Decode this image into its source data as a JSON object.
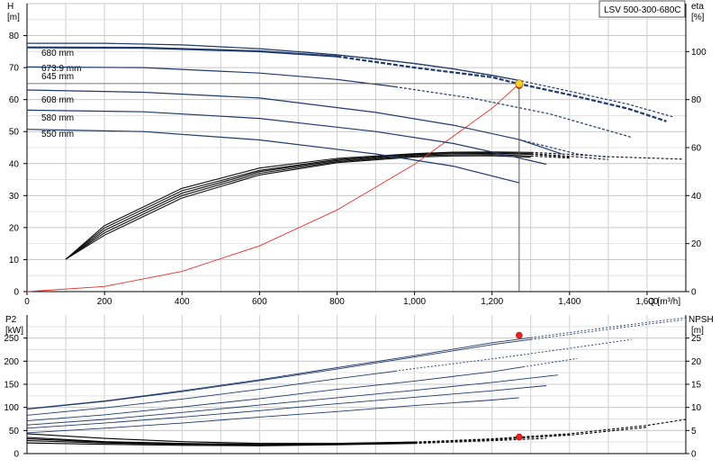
{
  "model": "LSV 500-300-680C",
  "chart_data": [
    {
      "type": "line",
      "name": "pump-head-efficiency",
      "x_axis": {
        "label": "Q [m³/h]",
        "range": [
          0,
          1700
        ],
        "ticks": [
          0,
          200,
          400,
          600,
          800,
          1000,
          1200,
          1400,
          1600
        ],
        "tick_labels": [
          "0",
          "200",
          "400",
          "600",
          "800",
          "1,000",
          "1,200",
          "1,400",
          "1,600"
        ]
      },
      "y_left": {
        "label_line1": "H",
        "label_line2": "[m]",
        "range": [
          0,
          90
        ],
        "ticks": [
          0,
          10,
          20,
          30,
          40,
          50,
          60,
          70,
          80
        ]
      },
      "y_right": {
        "label_line1": "eta",
        "label_line2": "[%]",
        "range": [
          0,
          120
        ],
        "ticks": [
          0,
          20,
          40,
          60,
          80,
          100
        ]
      },
      "grid": true,
      "head_curves": [
        {
          "name": "680 mm",
          "solid": [
            [
              0,
              77.6
            ],
            [
              200,
              77.6
            ],
            [
              400,
              77.1
            ],
            [
              600,
              75.9
            ],
            [
              800,
              74
            ],
            [
              1000,
              71.3
            ],
            [
              1100,
              69.6
            ],
            [
              1200,
              67.6
            ],
            [
              1270,
              66
            ]
          ],
          "dashed": [
            [
              700,
              75
            ],
            [
              900,
              72.8
            ],
            [
              1100,
              69.6
            ],
            [
              1270,
              66
            ],
            [
              1400,
              62.6
            ],
            [
              1550,
              58.6
            ],
            [
              1670,
              54.5
            ]
          ]
        },
        {
          "name": "673.9 mm",
          "solid": [
            [
              0,
              76.3
            ],
            [
              300,
              76.2
            ],
            [
              600,
              75.1
            ],
            [
              800,
              73.5
            ]
          ],
          "dashed": [
            [
              800,
              73.5
            ],
            [
              1000,
              70
            ],
            [
              1200,
              67
            ],
            [
              1270,
              64.9
            ],
            [
              1400,
              61.5
            ],
            [
              1550,
              57.2
            ],
            [
              1650,
              53.2
            ]
          ],
          "emphasis": true
        },
        {
          "name": "645 mm",
          "solid": [
            [
              0,
              70.2
            ],
            [
              300,
              70
            ],
            [
              600,
              68.3
            ],
            [
              800,
              66.3
            ],
            [
              950,
              64
            ]
          ],
          "dashed": [
            [
              950,
              64
            ],
            [
              1150,
              60.4
            ],
            [
              1350,
              55.5
            ],
            [
              1560,
              48.2
            ]
          ]
        },
        {
          "name": "608 mm",
          "solid": [
            [
              0,
              63
            ],
            [
              300,
              62.3
            ],
            [
              600,
              60.5
            ],
            [
              900,
              56
            ],
            [
              1100,
              52
            ],
            [
              1270,
              47.5
            ],
            [
              1380,
              43
            ]
          ],
          "dashed": [
            [
              1270,
              47.5
            ],
            [
              1420,
              43
            ],
            [
              1500,
              42
            ]
          ]
        },
        {
          "name": "580 mm",
          "solid": [
            [
              0,
              56.7
            ],
            [
              300,
              56.2
            ],
            [
              600,
              54.1
            ],
            [
              900,
              50
            ],
            [
              1100,
              46.3
            ],
            [
              1250,
              42.3
            ],
            [
              1340,
              39.8
            ]
          ],
          "dashed": []
        },
        {
          "name": "550 mm",
          "solid": [
            [
              0,
              50.7
            ],
            [
              300,
              50
            ],
            [
              600,
              47.4
            ],
            [
              900,
              43
            ],
            [
              1100,
              39.2
            ],
            [
              1270,
              34
            ]
          ],
          "dashed": []
        }
      ],
      "efficiency_curves": {
        "solid_end": 1300,
        "curves": [
          [
            [
              100,
              13.5
            ],
            [
              200,
              27.5
            ],
            [
              400,
              43
            ],
            [
              600,
              51.5
            ],
            [
              800,
              55.5
            ],
            [
              1000,
              57.5
            ],
            [
              1100,
              58.1
            ],
            [
              1200,
              58.2
            ],
            [
              1300,
              58
            ],
            [
              1400,
              57.2
            ],
            [
              1500,
              56.2
            ],
            [
              1690,
              55.2
            ]
          ],
          [
            [
              100,
              13.5
            ],
            [
              200,
              26.5
            ],
            [
              400,
              42
            ],
            [
              600,
              50.5
            ],
            [
              800,
              55
            ],
            [
              1000,
              57.2
            ],
            [
              1100,
              57.9
            ],
            [
              1200,
              57.9
            ],
            [
              1300,
              57.5
            ],
            [
              1400,
              56.4
            ],
            [
              1500,
              55
            ]
          ],
          [
            [
              100,
              13.5
            ],
            [
              200,
              25.5
            ],
            [
              400,
              41
            ],
            [
              600,
              50
            ],
            [
              800,
              54.6
            ],
            [
              1000,
              56.9
            ],
            [
              1100,
              57.5
            ],
            [
              1200,
              57.6
            ],
            [
              1300,
              57.2
            ],
            [
              1400,
              56
            ]
          ],
          [
            [
              100,
              13.5
            ],
            [
              200,
              24.5
            ],
            [
              400,
              40
            ],
            [
              600,
              49.3
            ],
            [
              800,
              54.1
            ],
            [
              1000,
              56.5
            ],
            [
              1100,
              57
            ],
            [
              1200,
              57.1
            ],
            [
              1300,
              56.5
            ],
            [
              1400,
              55.6
            ]
          ],
          [
            [
              100,
              13.5
            ],
            [
              200,
              23.5
            ],
            [
              400,
              39
            ],
            [
              600,
              48.6
            ],
            [
              800,
              53.7
            ],
            [
              1000,
              56.1
            ],
            [
              1100,
              56.5
            ],
            [
              1200,
              56.6
            ],
            [
              1300,
              56
            ]
          ]
        ]
      },
      "system_curve": [
        [
          0,
          0
        ],
        [
          200,
          1.6
        ],
        [
          400,
          6.3
        ],
        [
          600,
          14.3
        ],
        [
          800,
          25.5
        ],
        [
          1000,
          39.8
        ],
        [
          1200,
          57.3
        ],
        [
          1270,
          64.9
        ]
      ],
      "operating_point": {
        "q": 1270,
        "h": 65,
        "eta": 86
      }
    },
    {
      "type": "line",
      "name": "power-npsh",
      "x_axis": {
        "range": [
          0,
          1700
        ]
      },
      "y_left": {
        "label_line1": "P2",
        "label_line2": "[kW]",
        "range": [
          0,
          300
        ],
        "ticks": [
          0,
          50,
          100,
          150,
          200,
          250
        ]
      },
      "y_right": {
        "label_line1": "NPSH",
        "label_line2": "[m]",
        "range": [
          0,
          30
        ],
        "ticks": [
          0,
          5,
          10,
          15,
          20,
          25
        ]
      },
      "power_curves": [
        {
          "solid_end": 1300,
          "points": [
            [
              0,
              97
            ],
            [
              200,
              114
            ],
            [
              400,
              136
            ],
            [
              600,
              160
            ],
            [
              800,
              186
            ],
            [
              1000,
              212
            ],
            [
              1200,
              240
            ],
            [
              1400,
              262
            ],
            [
              1600,
              284
            ],
            [
              1700,
              294
            ]
          ]
        },
        {
          "solid_end": 1300,
          "points": [
            [
              0,
              96
            ],
            [
              200,
              113
            ],
            [
              400,
              134
            ],
            [
              600,
              158
            ],
            [
              800,
              183
            ],
            [
              1000,
              209
            ],
            [
              1200,
              236
            ],
            [
              1400,
              258
            ],
            [
              1600,
              280
            ],
            [
              1690,
              289
            ]
          ]
        },
        {
          "solid_end": 950,
          "points": [
            [
              0,
              83
            ],
            [
              200,
              99
            ],
            [
              400,
              118
            ],
            [
              600,
              139
            ],
            [
              800,
              162
            ],
            [
              1000,
              184
            ],
            [
              1200,
              205
            ],
            [
              1400,
              228
            ],
            [
              1560,
              247
            ]
          ]
        },
        {
          "solid_end": 1280,
          "points": [
            [
              0,
              71
            ],
            [
              200,
              84
            ],
            [
              400,
              101
            ],
            [
              600,
              119
            ],
            [
              800,
              139
            ],
            [
              1000,
              157
            ],
            [
              1200,
              177
            ],
            [
              1420,
              206
            ]
          ]
        },
        {
          "solid_end": 1370,
          "points": [
            [
              0,
              62
            ],
            [
              200,
              74
            ],
            [
              400,
              89
            ],
            [
              600,
              105
            ],
            [
              800,
              121
            ],
            [
              1000,
              137
            ],
            [
              1200,
              154
            ],
            [
              1370,
              170
            ]
          ]
        },
        {
          "solid_end": 1340,
          "points": [
            [
              0,
              55
            ],
            [
              200,
              66
            ],
            [
              400,
              79
            ],
            [
              600,
              93
            ],
            [
              800,
              108
            ],
            [
              1000,
              122
            ],
            [
              1200,
              136
            ],
            [
              1340,
              147
            ]
          ]
        },
        {
          "solid_end": 1270,
          "points": [
            [
              0,
              45
            ],
            [
              200,
              55
            ],
            [
              400,
              66
            ],
            [
              600,
              79
            ],
            [
              800,
              91
            ],
            [
              1000,
              104
            ],
            [
              1200,
              116
            ],
            [
              1270,
              121
            ]
          ]
        }
      ],
      "npsh_curves": [
        [
          [
            0,
            3.5
          ],
          [
            200,
            2.6
          ],
          [
            400,
            2.2
          ],
          [
            600,
            2.0
          ],
          [
            800,
            2.1
          ],
          [
            1000,
            2.5
          ],
          [
            1200,
            3.2
          ],
          [
            1400,
            4.3
          ],
          [
            1600,
            6.1
          ],
          [
            1700,
            7.4
          ]
        ],
        [
          [
            0,
            4.3
          ],
          [
            200,
            3.3
          ],
          [
            400,
            2.6
          ],
          [
            600,
            2.2
          ],
          [
            800,
            2.2
          ],
          [
            1000,
            2.5
          ],
          [
            1200,
            3.0
          ],
          [
            1400,
            4.0
          ],
          [
            1600,
            5.7
          ]
        ],
        [
          [
            0,
            2.8
          ],
          [
            200,
            2.3
          ],
          [
            400,
            2.0
          ],
          [
            600,
            1.9
          ],
          [
            800,
            2.0
          ],
          [
            1000,
            2.3
          ],
          [
            1200,
            3.0
          ],
          [
            1400,
            4.1
          ]
        ],
        [
          [
            0,
            2.3
          ],
          [
            200,
            2.0
          ],
          [
            400,
            1.8
          ],
          [
            600,
            1.7
          ],
          [
            800,
            1.9
          ],
          [
            1000,
            2.2
          ],
          [
            1200,
            2.8
          ],
          [
            1340,
            3.3
          ]
        ],
        [
          [
            0,
            3.2
          ],
          [
            200,
            2.5
          ],
          [
            400,
            2.1
          ],
          [
            600,
            1.9
          ],
          [
            800,
            2.0
          ],
          [
            1000,
            2.4
          ],
          [
            1200,
            3.1
          ],
          [
            1270,
            3.5
          ]
        ]
      ],
      "operating_point": {
        "q": 1270,
        "p2": 256,
        "npsh": 3.6
      }
    }
  ]
}
